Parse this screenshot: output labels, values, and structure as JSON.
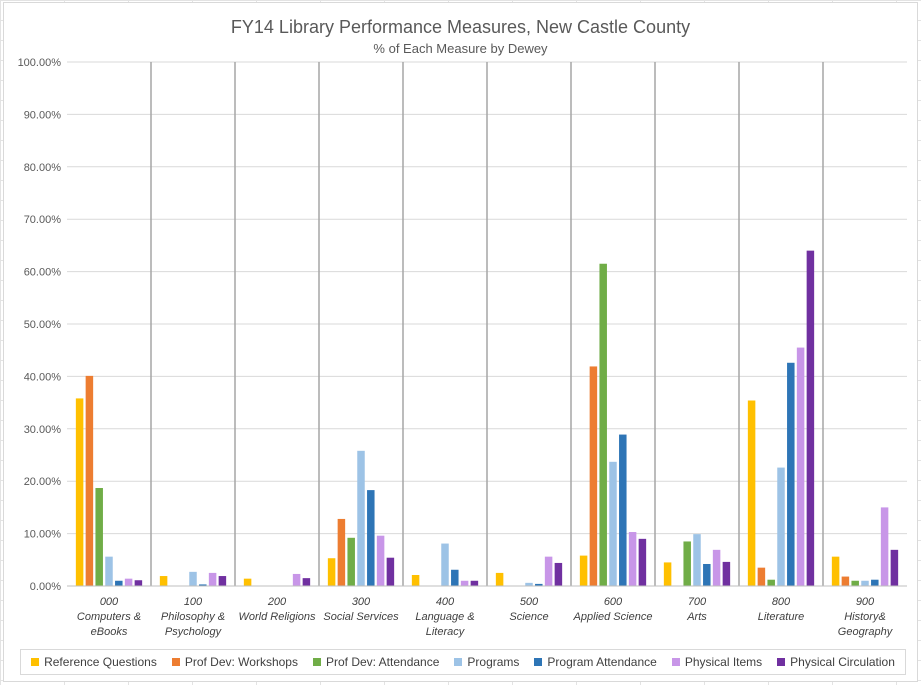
{
  "chart_data": {
    "type": "bar",
    "title": "FY14 Library Performance Measures, New Castle County",
    "subtitle": "% of Each Measure by Dewey",
    "xlabel": "",
    "ylabel": "",
    "ylim": [
      0,
      100
    ],
    "yticks": [
      "0.00%",
      "10.00%",
      "20.00%",
      "30.00%",
      "40.00%",
      "50.00%",
      "60.00%",
      "70.00%",
      "80.00%",
      "90.00%",
      "100.00%"
    ],
    "grid": true,
    "legend_position": "bottom",
    "categories": [
      [
        "000",
        "Computers &",
        "eBooks"
      ],
      [
        "100",
        "Philosophy &",
        "Psychology"
      ],
      [
        "200",
        "World Religions"
      ],
      [
        "300",
        "Social Services"
      ],
      [
        "400",
        "Language &",
        "Literacy"
      ],
      [
        "500",
        "Science"
      ],
      [
        "600",
        "Applied Science"
      ],
      [
        "700",
        "Arts"
      ],
      [
        "800",
        "Literature"
      ],
      [
        "900",
        "History&",
        "Geography"
      ]
    ],
    "series": [
      {
        "name": "Reference Questions",
        "color": "#FFC000",
        "values": [
          35.8,
          1.9,
          1.4,
          5.3,
          2.1,
          2.5,
          5.8,
          4.5,
          35.4,
          5.6
        ]
      },
      {
        "name": "Prof Dev: Workshops",
        "color": "#ED7D31",
        "values": [
          40.1,
          0,
          0,
          12.8,
          0,
          0,
          41.9,
          0,
          3.5,
          1.8
        ]
      },
      {
        "name": "Prof Dev: Attendance",
        "color": "#70AD47",
        "values": [
          18.7,
          0,
          0,
          9.2,
          0,
          0,
          61.5,
          8.5,
          1.2,
          1.0
        ]
      },
      {
        "name": "Programs",
        "color": "#9DC3E6",
        "values": [
          5.6,
          2.7,
          0,
          25.8,
          8.1,
          0.6,
          23.7,
          9.9,
          22.6,
          1.0
        ]
      },
      {
        "name": "Program Attendance",
        "color": "#2E75B6",
        "values": [
          1.0,
          0.3,
          0,
          18.3,
          3.1,
          0.4,
          28.9,
          4.2,
          42.6,
          1.2
        ]
      },
      {
        "name": "Physical Items",
        "color": "#C896E8",
        "values": [
          1.4,
          2.5,
          2.3,
          9.6,
          1.0,
          5.6,
          10.3,
          6.9,
          45.5,
          15.0
        ]
      },
      {
        "name": "Physical Circulation",
        "color": "#7030A0",
        "values": [
          1.1,
          1.9,
          1.5,
          5.4,
          1.0,
          4.4,
          9.0,
          4.6,
          64.0,
          6.9
        ]
      }
    ]
  }
}
